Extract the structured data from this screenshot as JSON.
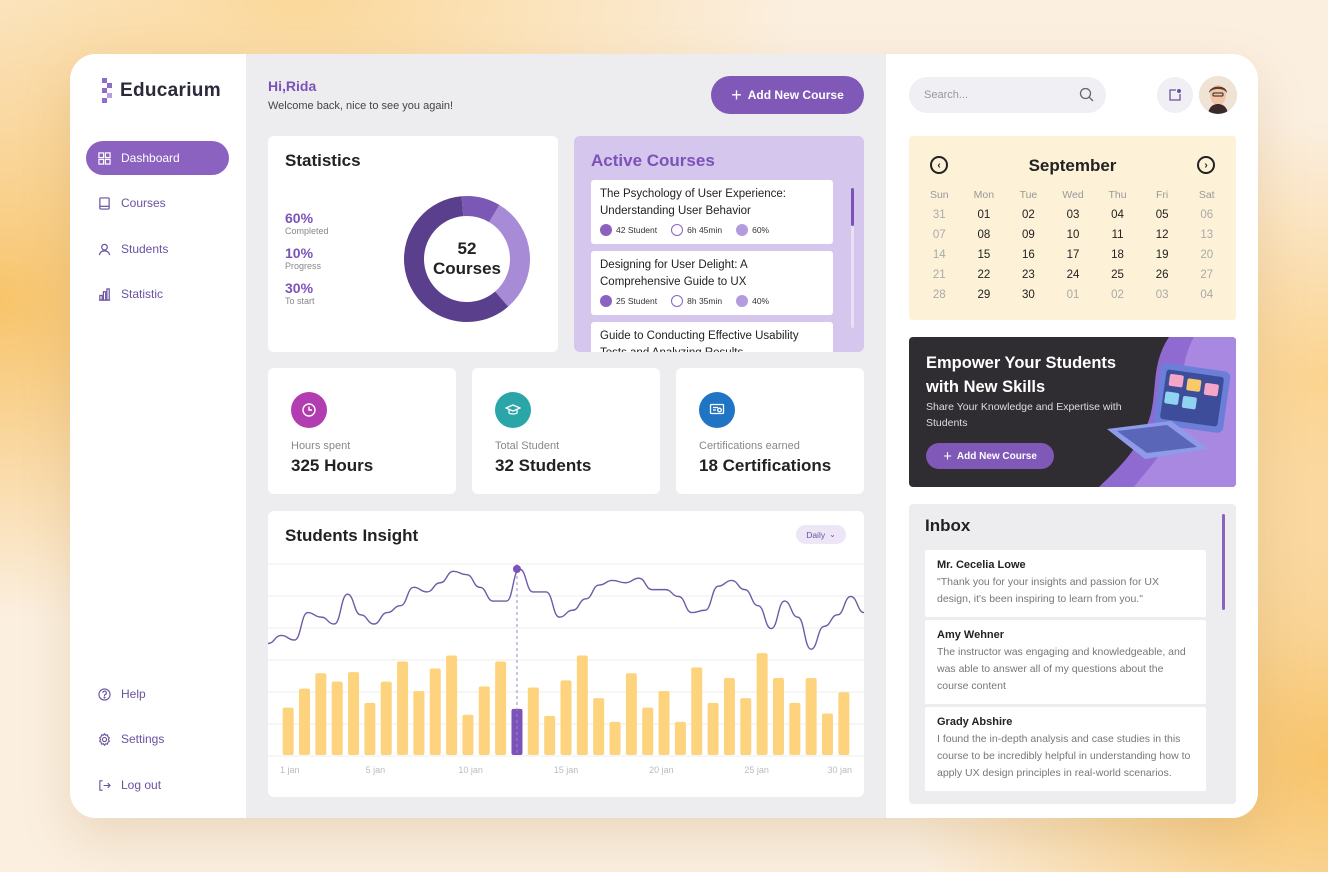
{
  "sidebar": {
    "brand": "Educarium",
    "nav": [
      {
        "label": "Dashboard",
        "icon": "grid-icon",
        "active": true
      },
      {
        "label": "Courses",
        "icon": "book-icon",
        "active": false
      },
      {
        "label": "Students",
        "icon": "user-icon",
        "active": false
      },
      {
        "label": "Statistic",
        "icon": "bar-chart-icon",
        "active": false
      }
    ],
    "bottom": [
      {
        "label": "Help",
        "icon": "help-icon"
      },
      {
        "label": "Settings",
        "icon": "gear-icon"
      },
      {
        "label": "Log out",
        "icon": "logout-icon"
      }
    ]
  },
  "header": {
    "greeting": "Hi,Rida",
    "subtitle": "Welcome back, nice to see you again!",
    "add_course_label": "Add New Course"
  },
  "statistics": {
    "title": "Statistics",
    "center_value": "52",
    "center_label": "Courses",
    "rows": [
      {
        "pct": "60%",
        "label": "Completed"
      },
      {
        "pct": "10%",
        "label": "Progress"
      },
      {
        "pct": "30%",
        "label": "To start"
      }
    ],
    "donut": [
      {
        "name": "Completed",
        "value": 60,
        "color": "#5a3f8c"
      },
      {
        "name": "Progress",
        "value": 10,
        "color": "#7b58b5"
      },
      {
        "name": "To start",
        "value": 30,
        "color": "#a78bd6"
      }
    ]
  },
  "active_courses": {
    "title": "Active Courses",
    "items": [
      {
        "name": "The Psychology of User Experience: Understanding User Behavior",
        "students": "42 Student",
        "duration": "6h 45min",
        "progress": "60%"
      },
      {
        "name": "Designing for User Delight: A Comprehensive Guide to UX",
        "students": "25 Student",
        "duration": "8h 35min",
        "progress": "40%"
      },
      {
        "name": "Guide to Conducting Effective Usability Tests and Analyzing Results",
        "students": "",
        "duration": "",
        "progress": ""
      }
    ]
  },
  "kpis": [
    {
      "label": "Hours spent",
      "value": "325 Hours",
      "color": "#b13db0",
      "icon": "clock-icon"
    },
    {
      "label": "Total Student",
      "value": "32 Students",
      "color": "#2aa6a9",
      "icon": "graduate-icon"
    },
    {
      "label": "Certifications earned",
      "value": "18 Certifications",
      "color": "#1f74c4",
      "icon": "certificate-icon"
    }
  ],
  "insight": {
    "title": "Students Insight",
    "period": "Daily"
  },
  "chart_data": {
    "type": "bar",
    "title": "Students Insight",
    "x_tick_labels": [
      "1 jan",
      "5 jan",
      "10 jan",
      "15 jan",
      "20 jan",
      "25 jan",
      "30 jan"
    ],
    "categories": [
      "1",
      "2",
      "3",
      "4",
      "5",
      "6",
      "7",
      "8",
      "9",
      "10",
      "11",
      "12",
      "13",
      "14",
      "15",
      "16",
      "17",
      "18",
      "19",
      "20",
      "21",
      "22",
      "23",
      "24",
      "25",
      "26",
      "27",
      "28",
      "29",
      "30",
      "31",
      "32",
      "33",
      "34",
      "35"
    ],
    "values": [
      40,
      56,
      69,
      62,
      70,
      44,
      62,
      79,
      54,
      73,
      84,
      34,
      58,
      79,
      39,
      57,
      33,
      63,
      84,
      48,
      28,
      69,
      40,
      54,
      28,
      74,
      44,
      65,
      48,
      86,
      65,
      44,
      65,
      35,
      53
    ],
    "highlight_index": 14,
    "highlight_color": "#7b52b8",
    "bar_color": "#fdd37d",
    "line": [
      35,
      42,
      38,
      62,
      58,
      52,
      78,
      60,
      52,
      62,
      68,
      84,
      80,
      88,
      98,
      95,
      84,
      72,
      72,
      100,
      80,
      80,
      58,
      64,
      74,
      86,
      90,
      88,
      92,
      82,
      82,
      76,
      62,
      64,
      85,
      90,
      82,
      68,
      48,
      72,
      58,
      30,
      50,
      60,
      76,
      62
    ],
    "ylim": [
      0,
      100
    ]
  },
  "topbar": {
    "search_placeholder": "Search..."
  },
  "calendar": {
    "month": "September",
    "weekdays": [
      "Sun",
      "Mon",
      "Tue",
      "Wed",
      "Thu",
      "Fri",
      "Sat"
    ],
    "weeks": [
      [
        "31",
        "01",
        "02",
        "03",
        "04",
        "05",
        "06"
      ],
      [
        "07",
        "08",
        "09",
        "10",
        "11",
        "12",
        "13"
      ],
      [
        "14",
        "15",
        "16",
        "17",
        "18",
        "19",
        "20"
      ],
      [
        "21",
        "22",
        "23",
        "24",
        "25",
        "26",
        "27"
      ],
      [
        "28",
        "29",
        "30",
        "01",
        "02",
        "03",
        "04"
      ]
    ],
    "muted": [
      [
        0,
        0
      ],
      [
        0,
        6
      ],
      [
        1,
        0
      ],
      [
        1,
        6
      ],
      [
        2,
        0
      ],
      [
        2,
        6
      ],
      [
        3,
        0
      ],
      [
        3,
        6
      ],
      [
        4,
        0
      ],
      [
        4,
        3
      ],
      [
        4,
        4
      ],
      [
        4,
        5
      ],
      [
        4,
        6
      ]
    ]
  },
  "promo": {
    "title": "Empower Your Students with New Skills",
    "subtitle": "Share Your Knowledge and Expertise with Students",
    "button": "Add New Course"
  },
  "inbox": {
    "title": "Inbox",
    "messages": [
      {
        "from": "Mr. Cecelia Lowe",
        "text": "\"Thank you for your insights and passion for UX design, it's been inspiring to learn from you.\""
      },
      {
        "from": "Amy Wehner",
        "text": "The instructor was engaging and knowledgeable, and was able to answer all of my questions about the course content"
      },
      {
        "from": "Grady Abshire",
        "text": "I found the in-depth analysis and case studies in this course to be incredibly helpful in understanding how to apply UX design principles in real-world scenarios."
      }
    ]
  }
}
